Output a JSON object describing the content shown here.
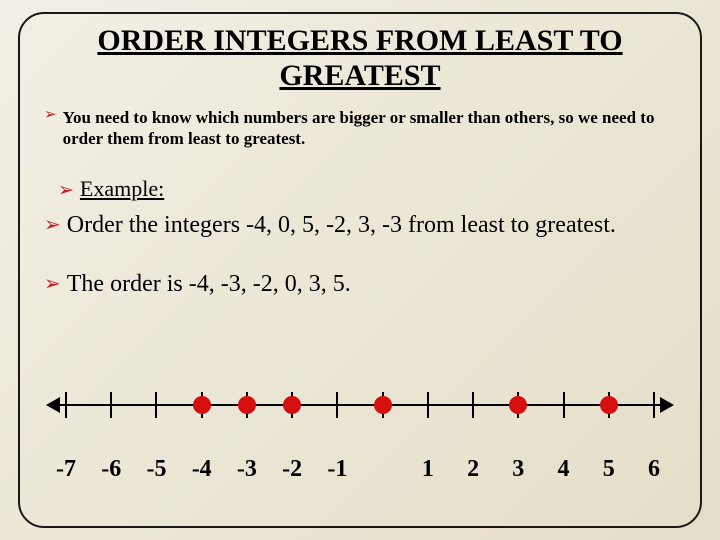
{
  "title": "ORDER INTEGERS FROM LEAST TO GREATEST",
  "bullet_glyph": "➢",
  "bullet_color": "#c11b1b",
  "intro": "You need to know which numbers are bigger or smaller than others, so we need to order them from least to greatest.",
  "example_label": "Example:",
  "question": "Order the integers -4, 0, 5, -2, 3, -3 from least to greatest.",
  "answer": "The order is -4, -3, -2, 0, 3, 5.",
  "numberline": {
    "min": -7,
    "max": 6,
    "labels": [
      "-7",
      "-6",
      "-5",
      "-4",
      "-3",
      "-2",
      "-1",
      "",
      "1",
      "2",
      "3",
      "4",
      "5",
      "6"
    ],
    "dot_positions": [
      -4,
      -3,
      -2,
      0,
      3,
      5
    ],
    "dot_color": "#d60e0e",
    "axis_color": "#000000"
  },
  "background_gradient": [
    "#f2efe6",
    "#e4dec8"
  ]
}
